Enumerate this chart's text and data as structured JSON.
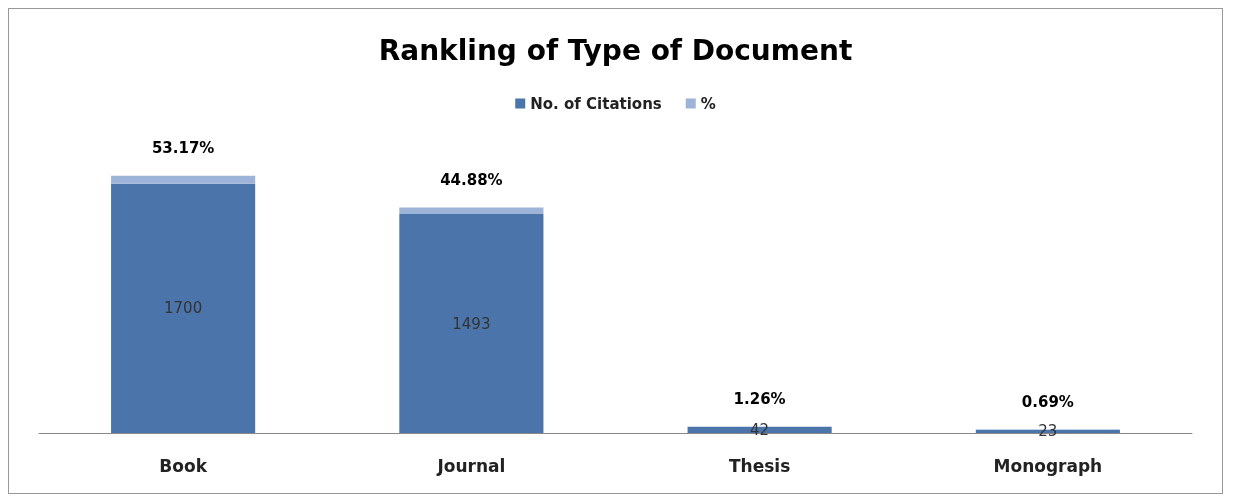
{
  "chart_data": {
    "type": "bar",
    "title": "Rankling of Type of Document",
    "categories": [
      "Book",
      "Journal",
      "Thesis",
      "Monograph"
    ],
    "stacked": true,
    "grid": false,
    "legend": "top",
    "series": [
      {
        "name": "No. of Citations",
        "color": "#4a74aa",
        "values": [
          1700,
          1493,
          42,
          23
        ],
        "value_labels": [
          "1700",
          "1493",
          "42",
          "23"
        ]
      },
      {
        "name": "%",
        "color": "#9db3d8",
        "values": [
          53.17,
          44.88,
          1.26,
          0.69
        ],
        "value_labels": [
          "53.17%",
          "44.88%",
          "1.26%",
          "0.69%"
        ]
      }
    ]
  }
}
